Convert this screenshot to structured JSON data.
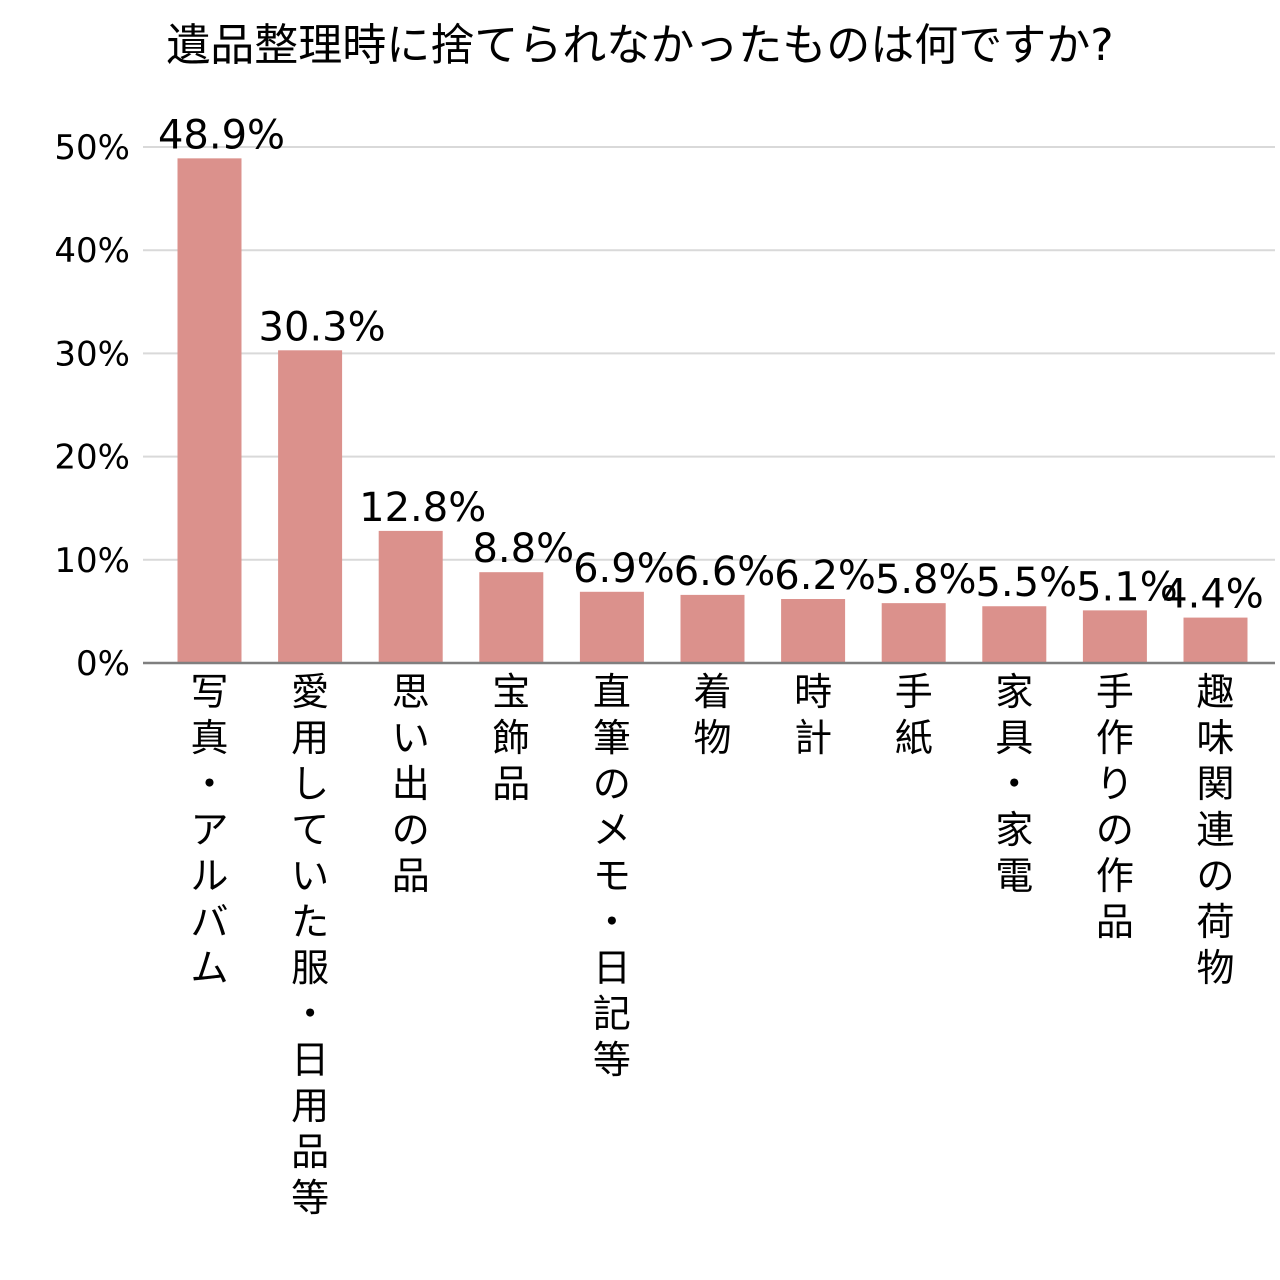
{
  "chart_data": {
    "type": "bar",
    "title": "遺品整理時に捨てられなかったものは何ですか?",
    "xlabel": "",
    "ylabel": "",
    "categories": [
      "写真・アルバム",
      "愛用していた服・日用品等",
      "思い出の品",
      "宝飾品",
      "直筆のメモ・日記等",
      "着物",
      "時計",
      "手紙",
      "家具・家電",
      "手作りの作品",
      "趣味関連の荷物"
    ],
    "values": [
      48.9,
      30.3,
      12.8,
      8.8,
      6.9,
      6.6,
      6.2,
      5.8,
      5.5,
      5.1,
      4.4
    ],
    "value_labels": [
      "48.9%",
      "30.3%",
      "12.8%",
      "8.8%",
      "6.9%",
      "6.6%",
      "6.2%",
      "5.8%",
      "5.5%",
      "5.1%",
      "4.4%"
    ],
    "ylim": [
      0,
      50
    ],
    "yticks": [
      "0%",
      "10%",
      "20%",
      "30%",
      "40%",
      "50%"
    ],
    "grid": true,
    "legend": "none",
    "bar_color": "#db918c",
    "grid_color": "#d9d9d9",
    "axis_color": "#7f7f7f"
  }
}
